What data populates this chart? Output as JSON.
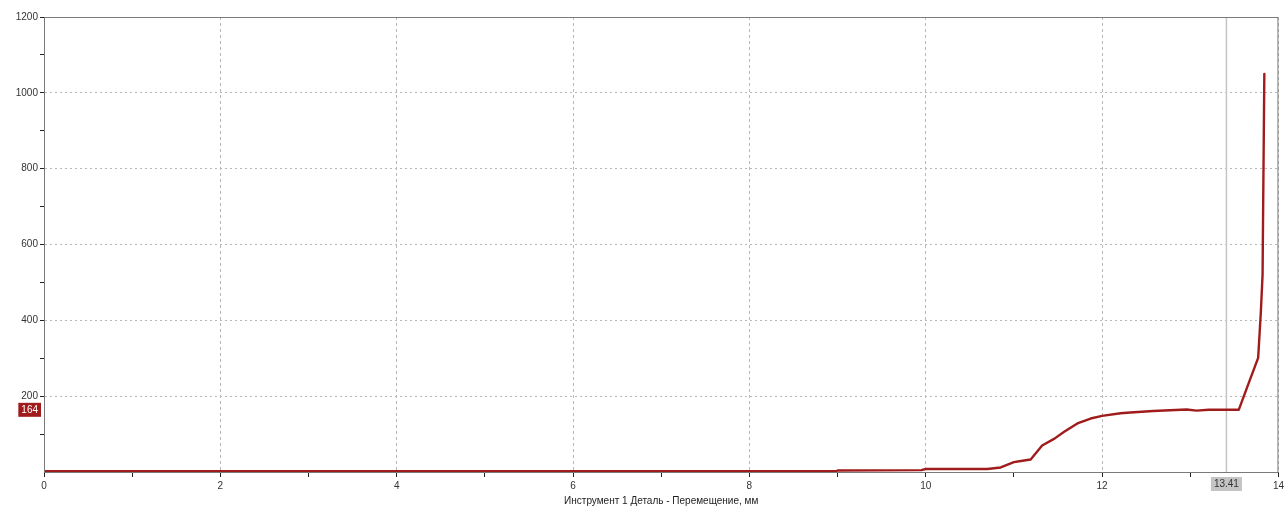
{
  "chart_data": {
    "type": "line",
    "xlabel": "Инструмент 1 Деталь - Перемещение, мм",
    "x": [
      0,
      8.98,
      9.0,
      9.95,
      10.0,
      10.7,
      10.85,
      11.0,
      11.19,
      11.32,
      11.46,
      11.57,
      11.72,
      11.87,
      12.0,
      12.21,
      12.32,
      12.58,
      12.96,
      13.07,
      13.21,
      13.55,
      13.67,
      13.77,
      13.8,
      13.82,
      13.84
    ],
    "series": [
      {
        "color": "#a01c1c",
        "values": [
          2,
          2,
          4,
          5,
          8,
          8,
          12,
          26,
          33,
          70,
          88,
          106,
          128,
          141,
          148,
          155,
          157,
          161,
          165,
          162,
          164,
          164,
          239,
          301,
          420,
          520,
          1050
        ]
      }
    ],
    "xlim": [
      0,
      14
    ],
    "xticks": [
      0,
      {
        "value": 1,
        "label": null
      },
      2,
      {
        "value": 3,
        "label": null
      },
      4,
      {
        "value": 5,
        "label": null
      },
      6,
      {
        "value": 7,
        "label": null
      },
      8,
      {
        "value": 9,
        "label": null
      },
      10,
      {
        "value": 11,
        "label": null
      },
      12,
      {
        "value": 13,
        "label": null
      },
      14
    ],
    "ylim": [
      0,
      1200
    ],
    "yticks": [
      {
        "value": 100,
        "label": null
      },
      200,
      {
        "value": 300,
        "label": null
      },
      400,
      {
        "value": 500,
        "label": null
      },
      600,
      {
        "value": 700,
        "label": null
      },
      800,
      {
        "value": 900,
        "label": null
      },
      1000,
      {
        "value": 1100,
        "label": null
      },
      1200
    ],
    "grid": true,
    "ref_lines": [
      {
        "axis": "x",
        "value": 13.41,
        "label": "13.41",
        "color": "#c4c4c4"
      }
    ],
    "annotations": [
      "164"
    ]
  }
}
